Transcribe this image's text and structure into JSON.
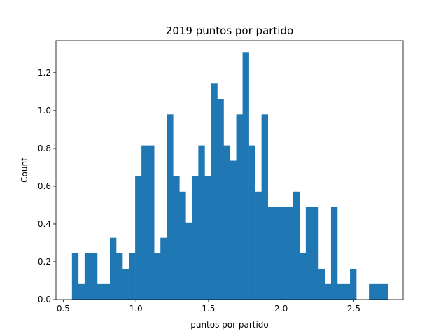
{
  "chart_data": {
    "type": "bar",
    "title": "2019 puntos por partido",
    "xlabel": "puntos por partido",
    "ylabel": "Count",
    "xlim": [
      0.45,
      2.84
    ],
    "ylim": [
      0,
      1.37
    ],
    "bin_width": 0.0435,
    "bin_start": 0.56,
    "values": [
      0.245,
      0.082,
      0.245,
      0.245,
      0.082,
      0.082,
      0.327,
      0.245,
      0.163,
      0.245,
      0.653,
      0.816,
      0.816,
      0.245,
      0.327,
      0.98,
      0.653,
      0.571,
      0.408,
      0.653,
      0.816,
      0.653,
      1.143,
      1.061,
      0.816,
      0.735,
      0.98,
      1.306,
      0.816,
      0.571,
      0.98,
      0.49,
      0.49,
      0.49,
      0.49,
      0.571,
      0.245,
      0.49,
      0.49,
      0.163,
      0.082,
      0.49,
      0.082,
      0.082,
      0.163,
      0.0,
      0.0,
      0.082,
      0.082,
      0.082
    ],
    "xticks": [
      0.5,
      1.0,
      1.5,
      2.0,
      2.5
    ],
    "xtick_labels": [
      "0.5",
      "1.0",
      "1.5",
      "2.0",
      "2.5"
    ],
    "yticks": [
      0.0,
      0.2,
      0.4,
      0.6,
      0.8,
      1.0,
      1.2
    ],
    "ytick_labels": [
      "0.0",
      "0.2",
      "0.4",
      "0.6",
      "0.8",
      "1.0",
      "1.2"
    ],
    "bar_color": "#1f77b4",
    "grid": false
  }
}
